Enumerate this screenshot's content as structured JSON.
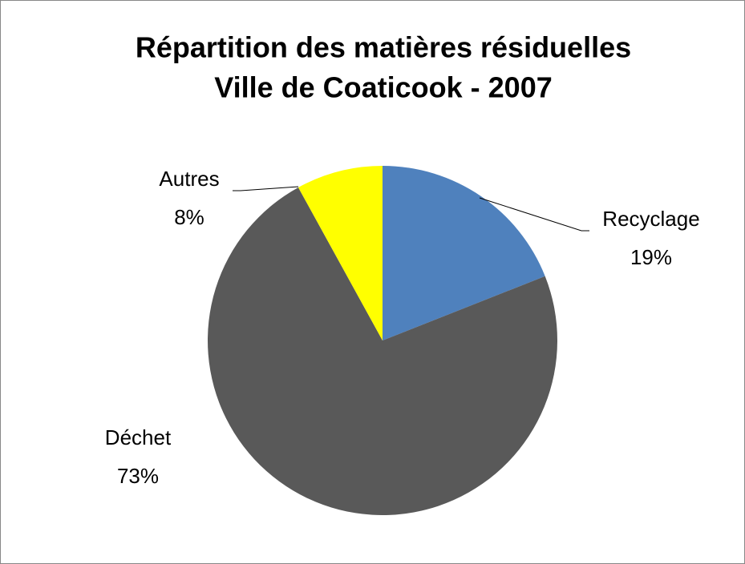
{
  "chart_data": {
    "type": "pie",
    "title": [
      "Répartition des matières résiduelles",
      "Ville de Coaticook - 2007"
    ],
    "categories": [
      "Recyclage",
      "Déchet",
      "Autres"
    ],
    "values": [
      19,
      73,
      8
    ],
    "value_labels": [
      "19%",
      "73%",
      "8%"
    ],
    "colors": [
      "#4f81bd",
      "#595959",
      "#ffff00"
    ]
  }
}
